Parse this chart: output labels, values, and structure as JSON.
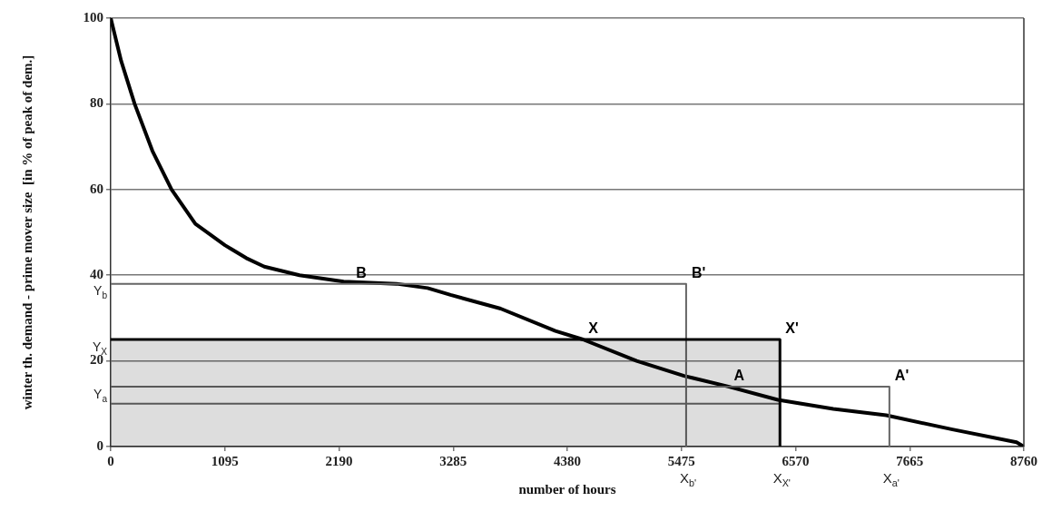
{
  "chart_data": {
    "type": "line",
    "xlabel": "number of hours",
    "ylabel": "winter th. demand - prime mover size  [in % of peak of dem.]",
    "xlim": [
      0,
      8760
    ],
    "ylim": [
      0,
      100
    ],
    "xticks": [
      0,
      1095,
      2190,
      3285,
      4380,
      5475,
      6570,
      7665,
      8760
    ],
    "yticks": [
      0,
      20,
      40,
      60,
      80,
      100
    ],
    "grid": "y",
    "legend": false,
    "marker": "none",
    "line_style": "solid",
    "series": [
      {
        "type": "area",
        "color": "#000000",
        "x": [
          0,
          6420,
          6420
        ],
        "values": [
          25,
          25,
          0
        ]
      },
      {
        "color": "#666666",
        "x": [
          0,
          5520,
          5520
        ],
        "values": [
          38,
          38,
          0
        ]
      },
      {
        "color": "#666666",
        "x": [
          0,
          7470,
          7470
        ],
        "values": [
          14,
          14,
          0
        ]
      },
      {
        "color": "#666666",
        "x": [
          0,
          6420
        ],
        "values": [
          10,
          10
        ]
      },
      {
        "color": "#000000",
        "x": [
          0,
          100,
          229,
          400,
          584,
          812,
          1095,
          1300,
          1473,
          1811,
          2234,
          2742,
          3040,
          3260,
          3740,
          4266,
          4530,
          5045,
          5500,
          5925,
          6400,
          6932,
          7440,
          8075,
          8690,
          8760
        ],
        "values": [
          100,
          90,
          80,
          69,
          60,
          52,
          47,
          44,
          42,
          40,
          38.5,
          38,
          37,
          35.4,
          32.2,
          27,
          25,
          20,
          16.5,
          14,
          10.9,
          8.8,
          7.3,
          4,
          1,
          0
        ]
      }
    ],
    "annotations": [
      {
        "text": "B",
        "x": 2300,
        "y": 38
      },
      {
        "text": "B'",
        "x": 5520,
        "y": 38
      },
      {
        "text": "X",
        "x": 4530,
        "y": 25
      },
      {
        "text": "X'",
        "x": 6420,
        "y": 25
      },
      {
        "text": "A",
        "x": 5925,
        "y": 14
      },
      {
        "text": "A'",
        "x": 7470,
        "y": 14
      },
      {
        "text": "X$_{b'}$",
        "x": 5520,
        "y": 0
      },
      {
        "text": "X$_{X'}$",
        "x": 6420,
        "y": 0
      },
      {
        "text": "X$_{a'}$",
        "x": 7470,
        "y": 0
      },
      {
        "text": "Y$_{b}$",
        "x": 0,
        "y": 38
      },
      {
        "text": "Y$_{X}$",
        "x": 0,
        "y": 25
      },
      {
        "text": "Y$_{a}$",
        "x": 0,
        "y": 14
      }
    ]
  }
}
